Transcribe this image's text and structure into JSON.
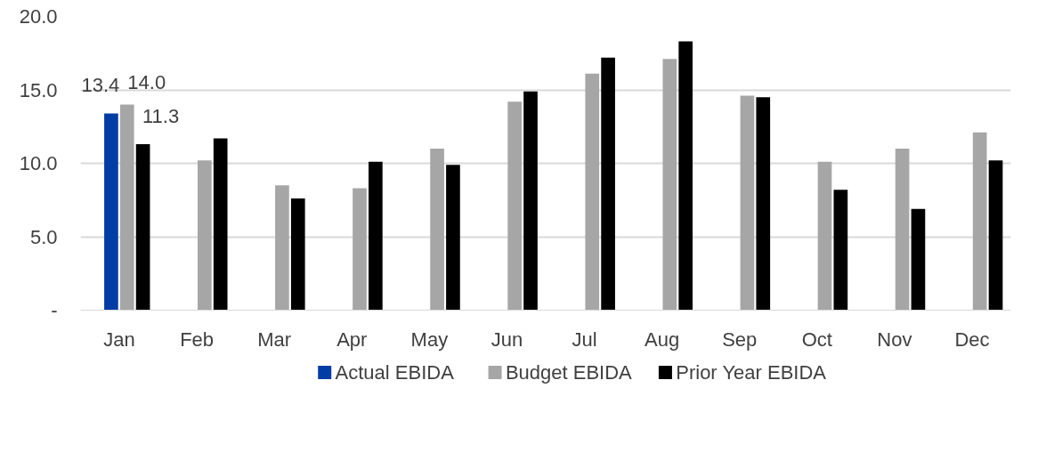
{
  "chart_data": {
    "type": "bar",
    "categories": [
      "Jan",
      "Feb",
      "Mar",
      "Apr",
      "May",
      "Jun",
      "Jul",
      "Aug",
      "Sep",
      "Oct",
      "Nov",
      "Dec"
    ],
    "series": [
      {
        "name": "Actual EBIDA",
        "color": "#003da5",
        "values": [
          13.4,
          null,
          null,
          null,
          null,
          null,
          null,
          null,
          null,
          null,
          null,
          null
        ],
        "value_labels": [
          "13.4",
          null,
          null,
          null,
          null,
          null,
          null,
          null,
          null,
          null,
          null,
          null
        ]
      },
      {
        "name": "Budget EBIDA",
        "color": "#a6a6a6",
        "values": [
          14.0,
          10.2,
          8.5,
          8.3,
          11.0,
          14.2,
          16.1,
          17.1,
          14.6,
          10.1,
          11.0,
          12.1
        ],
        "value_labels": [
          "14.0",
          null,
          null,
          null,
          null,
          null,
          null,
          null,
          null,
          null,
          null,
          null
        ]
      },
      {
        "name": "Prior Year EBIDA",
        "color": "#000000",
        "values": [
          11.3,
          11.7,
          7.6,
          10.1,
          9.9,
          14.9,
          17.2,
          18.3,
          14.5,
          8.2,
          6.9,
          10.2
        ],
        "value_labels": [
          "11.3",
          null,
          null,
          null,
          null,
          null,
          null,
          null,
          null,
          null,
          null,
          null
        ]
      }
    ],
    "ylim": [
      0,
      20
    ],
    "yticks": [
      {
        "value": 0,
        "label": "-"
      },
      {
        "value": 5,
        "label": "5.0"
      },
      {
        "value": 10,
        "label": "10.0"
      },
      {
        "value": 15,
        "label": "15.0"
      },
      {
        "value": 20,
        "label": "20.0"
      }
    ],
    "grid": "y",
    "legend": "bottom"
  }
}
